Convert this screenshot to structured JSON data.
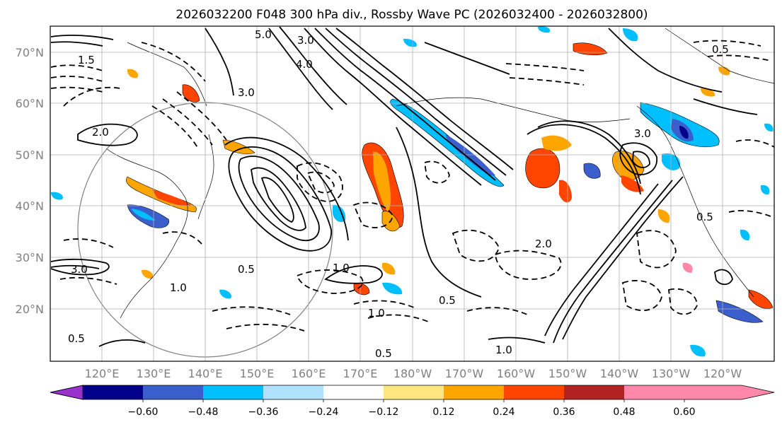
{
  "title": "2026032200 F048 300 hPa div., Rossby Wave PC (2026032400 - 2026032800)",
  "lat_labels": [
    "70°N",
    "60°N",
    "50°N",
    "40°N",
    "30°N",
    "20°N"
  ],
  "lon_labels": [
    "120°E",
    "130°E",
    "140°E",
    "150°E",
    "160°E",
    "170°E",
    "180°W",
    "170°W",
    "160°W",
    "150°W",
    "140°W",
    "130°W",
    "120°W"
  ],
  "colorbar": {
    "ticks": [
      "−0.60",
      "−0.48",
      "−0.36",
      "−0.24",
      "−0.12",
      "0.12",
      "0.24",
      "0.36",
      "0.48",
      "0.60"
    ],
    "colors": [
      "#9932cc",
      "#00008b",
      "#3a5fcd",
      "#00bfff",
      "#b0e2ff",
      "#ffffff",
      "#ffe680",
      "#ffa500",
      "#ff4500",
      "#b22222",
      "#ff88aa"
    ]
  },
  "contour_labels": [
    "1.0",
    "1.0",
    "1.0",
    "0.5",
    "0.5",
    "0.5",
    "0.5",
    "0.5",
    "1.5",
    "2.0",
    "2.0",
    "3.0",
    "3.0",
    "3.0",
    "3.0",
    "4.0",
    "5.0",
    "0.5",
    "1.0"
  ]
}
